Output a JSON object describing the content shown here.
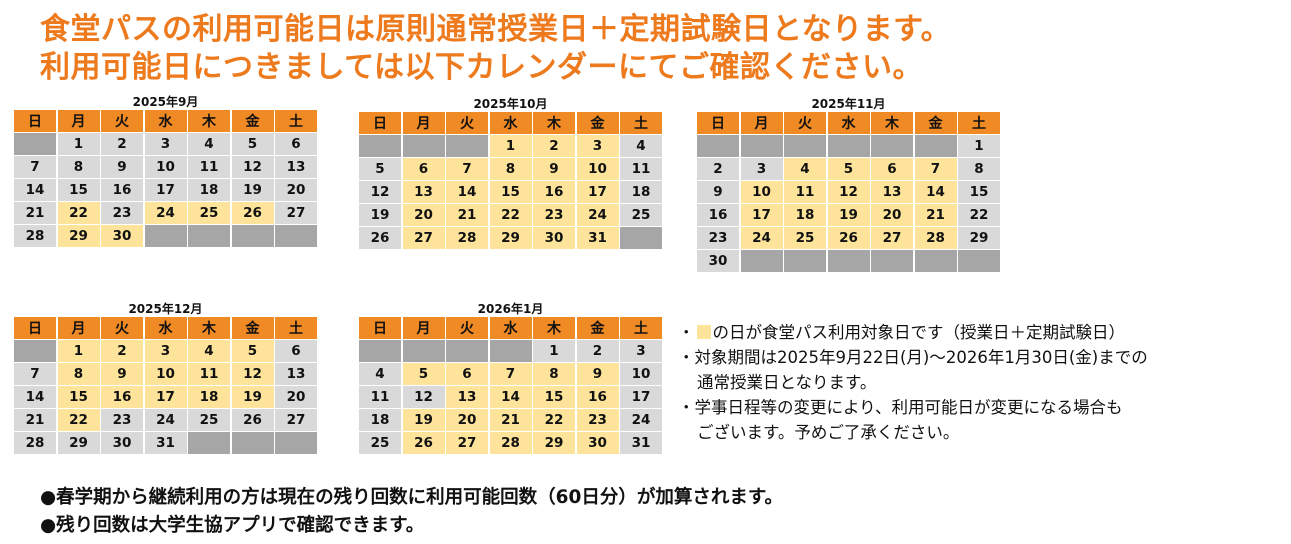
{
  "title": {
    "line1": "食堂パスの利用可能日は原則通常授業日＋定期試験日となります。",
    "line2": "利用可能日につきましては以下カレンダーにてご確認ください。"
  },
  "weekday_headers": [
    "日",
    "月",
    "火",
    "水",
    "木",
    "金",
    "土"
  ],
  "legend": {
    "available_color": "#fde49a",
    "header_color": "#f08a24",
    "normal_day_color": "#d9d9d9",
    "blank_color": "#a6a6a6"
  },
  "calendars": [
    {
      "title": "2025年9月",
      "rows": [
        [
          "",
          "1",
          "2",
          "3",
          "4",
          "5",
          "6"
        ],
        [
          "7",
          "8",
          "9",
          "10",
          "11",
          "12",
          "13"
        ],
        [
          "14",
          "15",
          "16",
          "17",
          "18",
          "19",
          "20"
        ],
        [
          "21",
          "22",
          "23",
          "24",
          "25",
          "26",
          "27"
        ],
        [
          "28",
          "29",
          "30",
          "",
          "",
          "",
          ""
        ]
      ],
      "available": [
        "22",
        "24",
        "25",
        "26",
        "29",
        "30"
      ]
    },
    {
      "title": "2025年10月",
      "rows": [
        [
          "",
          "",
          "",
          "1",
          "2",
          "3",
          "4"
        ],
        [
          "5",
          "6",
          "7",
          "8",
          "9",
          "10",
          "11"
        ],
        [
          "12",
          "13",
          "14",
          "15",
          "16",
          "17",
          "18"
        ],
        [
          "19",
          "20",
          "21",
          "22",
          "23",
          "24",
          "25"
        ],
        [
          "26",
          "27",
          "28",
          "29",
          "30",
          "31",
          ""
        ]
      ],
      "available": [
        "1",
        "2",
        "3",
        "6",
        "7",
        "8",
        "9",
        "10",
        "13",
        "14",
        "15",
        "16",
        "17",
        "20",
        "21",
        "22",
        "23",
        "24",
        "27",
        "28",
        "29",
        "30",
        "31"
      ]
    },
    {
      "title": "2025年11月",
      "rows": [
        [
          "",
          "",
          "",
          "",
          "",
          "",
          "1"
        ],
        [
          "2",
          "3",
          "4",
          "5",
          "6",
          "7",
          "8"
        ],
        [
          "9",
          "10",
          "11",
          "12",
          "13",
          "14",
          "15"
        ],
        [
          "16",
          "17",
          "18",
          "19",
          "20",
          "21",
          "22"
        ],
        [
          "23",
          "24",
          "25",
          "26",
          "27",
          "28",
          "29"
        ],
        [
          "30",
          "",
          "",
          "",
          "",
          "",
          ""
        ]
      ],
      "available": [
        "4",
        "5",
        "6",
        "7",
        "10",
        "11",
        "12",
        "13",
        "14",
        "17",
        "18",
        "19",
        "20",
        "21",
        "24",
        "25",
        "26",
        "27",
        "28"
      ]
    },
    {
      "title": "2025年12月",
      "rows": [
        [
          "",
          "1",
          "2",
          "3",
          "4",
          "5",
          "6"
        ],
        [
          "7",
          "8",
          "9",
          "10",
          "11",
          "12",
          "13"
        ],
        [
          "14",
          "15",
          "16",
          "17",
          "18",
          "19",
          "20"
        ],
        [
          "21",
          "22",
          "23",
          "24",
          "25",
          "26",
          "27"
        ],
        [
          "28",
          "29",
          "30",
          "31",
          "",
          "",
          ""
        ]
      ],
      "available": [
        "1",
        "2",
        "3",
        "4",
        "5",
        "8",
        "9",
        "10",
        "11",
        "12",
        "15",
        "16",
        "17",
        "18",
        "19",
        "22"
      ]
    },
    {
      "title": "2026年1月",
      "rows": [
        [
          "",
          "",
          "",
          "",
          "1",
          "2",
          "3"
        ],
        [
          "4",
          "5",
          "6",
          "7",
          "8",
          "9",
          "10"
        ],
        [
          "11",
          "12",
          "13",
          "14",
          "15",
          "16",
          "17"
        ],
        [
          "18",
          "19",
          "20",
          "21",
          "22",
          "23",
          "24"
        ],
        [
          "25",
          "26",
          "27",
          "28",
          "29",
          "30",
          "31"
        ]
      ],
      "available": [
        "5",
        "6",
        "7",
        "8",
        "9",
        "13",
        "14",
        "15",
        "16",
        "19",
        "20",
        "21",
        "22",
        "23",
        "26",
        "27",
        "28",
        "29",
        "30"
      ]
    }
  ],
  "notes": {
    "line1_prefix": "・",
    "line1_text": "の日が食堂パス利用対象日です（授業日＋定期試験日）",
    "line2": "・対象期間は2025年9月22日(月)～2026年1月30日(金)までの",
    "line3": "通常授業日となります。",
    "line4": "・学事日程等の変更により、利用可能日が変更になる場合も",
    "line5": "ございます。予めご了承ください。"
  },
  "footer": {
    "line1": "●春学期から継続利用の方は現在の残り回数に利用可能回数（60日分）が加算されます。",
    "line2": "●残り回数は大学生協アプリで確認できます。"
  }
}
